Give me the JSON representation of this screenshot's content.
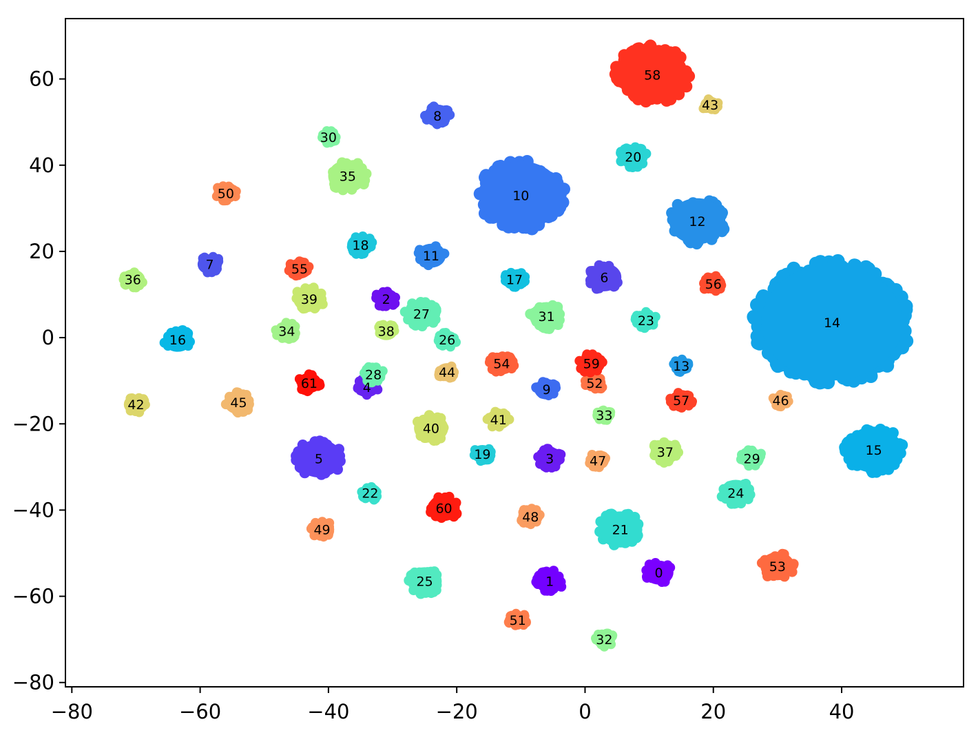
{
  "chart_data": {
    "type": "scatter",
    "title": "",
    "xlabel": "",
    "ylabel": "",
    "xlim": [
      -81,
      59
    ],
    "ylim": [
      -81,
      74
    ],
    "xticks": [
      -80,
      -60,
      -40,
      -20,
      0,
      20,
      40
    ],
    "yticks": [
      -80,
      -60,
      -40,
      -20,
      0,
      20,
      40,
      60
    ],
    "grid": false,
    "legend": "none",
    "clusters": [
      {
        "label": "0",
        "x": 11.5,
        "y": -54.5,
        "size": 1.2,
        "color": "#7a00ff"
      },
      {
        "label": "1",
        "x": -5.5,
        "y": -56.5,
        "size": 1.2,
        "color": "#7300ff"
      },
      {
        "label": "2",
        "x": -31.0,
        "y": 9.0,
        "size": 1.0,
        "color": "#6e10f0"
      },
      {
        "label": "3",
        "x": -5.5,
        "y": -28.0,
        "size": 1.1,
        "color": "#6a1cf2"
      },
      {
        "label": "4",
        "x": -34.0,
        "y": -11.5,
        "size": 1.0,
        "color": "#6624f0"
      },
      {
        "label": "5",
        "x": -41.5,
        "y": -28.0,
        "size": 1.9,
        "color": "#5a3cf5"
      },
      {
        "label": "6",
        "x": 3.0,
        "y": 14.0,
        "size": 1.4,
        "color": "#5846ec"
      },
      {
        "label": "7",
        "x": -58.5,
        "y": 17.0,
        "size": 1.0,
        "color": "#4e55ec"
      },
      {
        "label": "8",
        "x": -23.0,
        "y": 51.5,
        "size": 1.1,
        "color": "#4662f0"
      },
      {
        "label": "9",
        "x": -6.0,
        "y": -12.0,
        "size": 1.0,
        "color": "#3d6cf0"
      },
      {
        "label": "10",
        "x": -10.0,
        "y": 33.0,
        "size": 3.4,
        "color": "#3678f2"
      },
      {
        "label": "11",
        "x": -24.0,
        "y": 19.0,
        "size": 1.2,
        "color": "#2e84ec"
      },
      {
        "label": "12",
        "x": 17.5,
        "y": 27.0,
        "size": 2.3,
        "color": "#2690e8"
      },
      {
        "label": "13",
        "x": 15.0,
        "y": -6.5,
        "size": 0.8,
        "color": "#2098e4"
      },
      {
        "label": "14",
        "x": 38.5,
        "y": 3.5,
        "size": 5.8,
        "color": "#12a4e8"
      },
      {
        "label": "15",
        "x": 45.0,
        "y": -26.0,
        "size": 2.3,
        "color": "#0ab0e8"
      },
      {
        "label": "16",
        "x": -63.5,
        "y": -0.5,
        "size": 1.2,
        "color": "#08b8e6"
      },
      {
        "label": "17",
        "x": -11.0,
        "y": 13.5,
        "size": 1.0,
        "color": "#12c0e0"
      },
      {
        "label": "18",
        "x": -35.0,
        "y": 21.5,
        "size": 1.1,
        "color": "#1cc6dc"
      },
      {
        "label": "19",
        "x": -16.0,
        "y": -27.0,
        "size": 0.9,
        "color": "#22ccd8"
      },
      {
        "label": "20",
        "x": 7.5,
        "y": 42.0,
        "size": 1.2,
        "color": "#2ad4d4"
      },
      {
        "label": "21",
        "x": 5.5,
        "y": -44.5,
        "size": 1.8,
        "color": "#32dcd0"
      },
      {
        "label": "22",
        "x": -33.5,
        "y": -36.0,
        "size": 0.9,
        "color": "#3ae0cc"
      },
      {
        "label": "23",
        "x": 9.5,
        "y": 4.0,
        "size": 1.0,
        "color": "#40e4c8"
      },
      {
        "label": "24",
        "x": 23.5,
        "y": -36.0,
        "size": 1.3,
        "color": "#48e6c4"
      },
      {
        "label": "25",
        "x": -25.0,
        "y": -56.5,
        "size": 1.4,
        "color": "#52eac0"
      },
      {
        "label": "26",
        "x": -21.5,
        "y": -0.5,
        "size": 0.9,
        "color": "#5aecba"
      },
      {
        "label": "27",
        "x": -25.5,
        "y": 5.5,
        "size": 1.4,
        "color": "#62eeb4"
      },
      {
        "label": "28",
        "x": -33.0,
        "y": -8.5,
        "size": 1.0,
        "color": "#6cf0ae"
      },
      {
        "label": "29",
        "x": 26.0,
        "y": -28.0,
        "size": 1.0,
        "color": "#76f2a8"
      },
      {
        "label": "30",
        "x": -40.0,
        "y": 46.5,
        "size": 0.8,
        "color": "#80f4a2"
      },
      {
        "label": "31",
        "x": -6.0,
        "y": 5.0,
        "size": 1.4,
        "color": "#8af49c"
      },
      {
        "label": "32",
        "x": 3.0,
        "y": -70.0,
        "size": 0.9,
        "color": "#92f496"
      },
      {
        "label": "33",
        "x": 3.0,
        "y": -18.0,
        "size": 0.8,
        "color": "#9af490"
      },
      {
        "label": "34",
        "x": -46.5,
        "y": 1.5,
        "size": 1.0,
        "color": "#a2f28a"
      },
      {
        "label": "35",
        "x": -37.0,
        "y": 37.5,
        "size": 1.6,
        "color": "#a8f284"
      },
      {
        "label": "36",
        "x": -70.5,
        "y": 13.5,
        "size": 1.0,
        "color": "#b0f07e"
      },
      {
        "label": "37",
        "x": 12.5,
        "y": -26.5,
        "size": 1.2,
        "color": "#b8ee78"
      },
      {
        "label": "38",
        "x": -31.0,
        "y": 1.5,
        "size": 0.9,
        "color": "#c0ec74"
      },
      {
        "label": "39",
        "x": -43.0,
        "y": 9.0,
        "size": 1.3,
        "color": "#c8e86e"
      },
      {
        "label": "40",
        "x": -24.0,
        "y": -21.0,
        "size": 1.4,
        "color": "#d0e26c"
      },
      {
        "label": "41",
        "x": -13.5,
        "y": -19.0,
        "size": 1.0,
        "color": "#d6dc6a"
      },
      {
        "label": "42",
        "x": -70.0,
        "y": -15.5,
        "size": 1.0,
        "color": "#dcd66a"
      },
      {
        "label": "43",
        "x": 19.5,
        "y": 54.0,
        "size": 0.8,
        "color": "#e2cc6c"
      },
      {
        "label": "44",
        "x": -21.5,
        "y": -8.0,
        "size": 0.9,
        "color": "#eac270"
      },
      {
        "label": "45",
        "x": -54.0,
        "y": -15.0,
        "size": 1.2,
        "color": "#f2b86e"
      },
      {
        "label": "46",
        "x": 30.5,
        "y": -14.5,
        "size": 0.8,
        "color": "#f6ae6a"
      },
      {
        "label": "47",
        "x": 2.0,
        "y": -28.5,
        "size": 0.9,
        "color": "#f8a666"
      },
      {
        "label": "48",
        "x": -8.5,
        "y": -41.5,
        "size": 1.0,
        "color": "#fa9c60"
      },
      {
        "label": "49",
        "x": -41.0,
        "y": -44.5,
        "size": 1.0,
        "color": "#fc925a"
      },
      {
        "label": "50",
        "x": -56.0,
        "y": 33.5,
        "size": 1.0,
        "color": "#fc8852"
      },
      {
        "label": "51",
        "x": -10.5,
        "y": -65.5,
        "size": 0.9,
        "color": "#fe7e4c"
      },
      {
        "label": "52",
        "x": 1.5,
        "y": -10.5,
        "size": 0.9,
        "color": "#fe7446"
      },
      {
        "label": "53",
        "x": 30.0,
        "y": -53.0,
        "size": 1.4,
        "color": "#fe6a40"
      },
      {
        "label": "54",
        "x": -13.0,
        "y": -6.0,
        "size": 1.1,
        "color": "#fe603a"
      },
      {
        "label": "55",
        "x": -44.5,
        "y": 16.0,
        "size": 1.0,
        "color": "#fe5634"
      },
      {
        "label": "56",
        "x": 20.0,
        "y": 12.5,
        "size": 1.0,
        "color": "#fe4c2e"
      },
      {
        "label": "57",
        "x": 15.0,
        "y": -14.5,
        "size": 1.0,
        "color": "#fe4228"
      },
      {
        "label": "58",
        "x": 10.5,
        "y": 61.0,
        "size": 2.9,
        "color": "#ff3220"
      },
      {
        "label": "59",
        "x": 1.0,
        "y": -6.0,
        "size": 1.1,
        "color": "#ff2818"
      },
      {
        "label": "60",
        "x": -22.0,
        "y": -39.5,
        "size": 1.3,
        "color": "#ff1c10"
      },
      {
        "label": "61",
        "x": -43.0,
        "y": -10.5,
        "size": 1.0,
        "color": "#ff1008"
      }
    ]
  }
}
